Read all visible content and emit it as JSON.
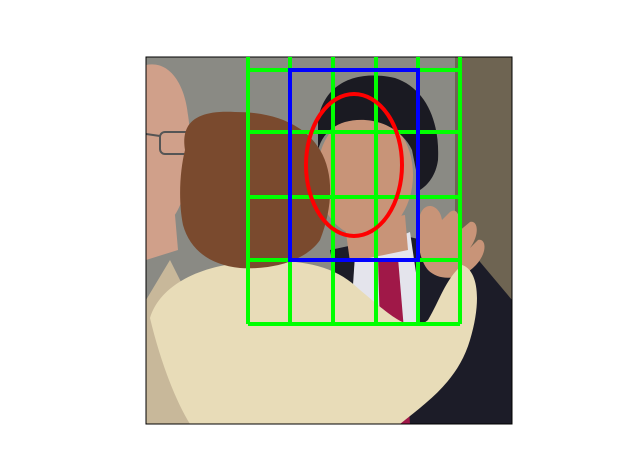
{
  "scene": {
    "subject": "courtroom-embrace-photo",
    "colors": {
      "background": "#ffffff",
      "frame": "#000000",
      "grid": "#00ff00",
      "box": "#0000ff",
      "face_ellipse": "#ff0000",
      "wall": "#8a8a84",
      "wall_right": "#6e6452",
      "blouse": "#e8dcb8",
      "hair_woman": "#7a4a2e",
      "hair_man": "#1a1a22",
      "skin": "#c89478",
      "suit": "#1c1c28",
      "shirt": "#e4e4ec",
      "tie": "#a01848",
      "jacket_left": "#c8b89a",
      "old_man_skin": "#d0a08a"
    },
    "icons": [
      "glasses-icon"
    ]
  }
}
